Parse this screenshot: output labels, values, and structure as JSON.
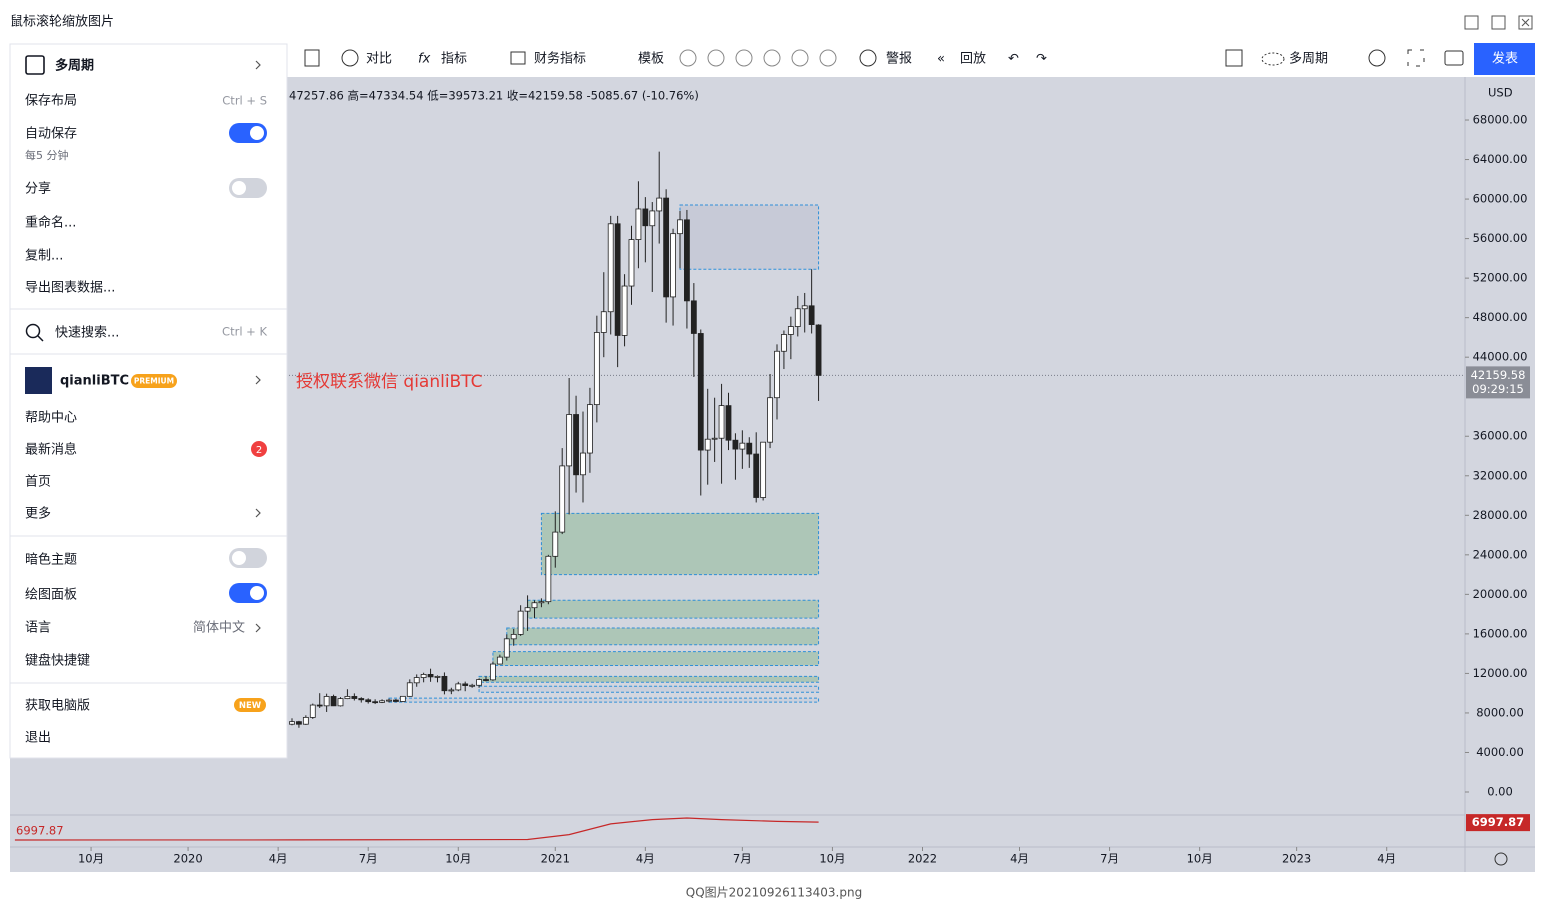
{
  "window": {
    "title": "鼠标滚轮缩放图片",
    "footer": "QQ图片20210926113403.png"
  },
  "toolbar": {
    "compare": "对比",
    "indicators": "指标",
    "financials": "财务指标",
    "templates": "模板",
    "alert": "警报",
    "replay": "回放",
    "layout": "多周期",
    "publish": "发表"
  },
  "menu": {
    "timeframe": "多周期",
    "save_layout": {
      "label": "保存布局",
      "shortcut": "Ctrl + S"
    },
    "autosave": {
      "label": "自动保存",
      "note": "每5 分钟",
      "on": true
    },
    "share": {
      "label": "分享",
      "on": false
    },
    "rename": "重命名...",
    "copy": "复制...",
    "export": "导出图表数据...",
    "search": {
      "label": "快速搜索...",
      "shortcut": "Ctrl + K"
    },
    "user": {
      "name": "qianliBTC",
      "plan": "PREMIUM"
    },
    "help": "帮助中心",
    "news": {
      "label": "最新消息",
      "count": 2
    },
    "home": "首页",
    "more": "更多",
    "dark": {
      "label": "暗色主题",
      "on": false
    },
    "drawing": {
      "label": "绘图面板",
      "on": true
    },
    "language": {
      "label": "语言",
      "value": "简体中文"
    },
    "shortcuts": "键盘快捷键",
    "desktop": {
      "label": "获取电脑版",
      "badge": "NEW"
    },
    "logout": "退出"
  },
  "chart_data": {
    "type": "candlestick",
    "header": "47257.86 高=47334.54 低=39573.21 收=42159.58 -5085.67 (-10.76%)",
    "watermark": "授权联系微信 qianliBTC",
    "currency": "USD",
    "up_color": "#ffffff",
    "down_color": "#222222",
    "open": [
      6860,
      7120,
      6860,
      7550,
      8800,
      8720,
      9670,
      8720,
      9450,
      9670,
      9460,
      9330,
      9140,
      9070,
      9230,
      9300,
      9160,
      9680,
      11050,
      11580,
      11900,
      11650,
      11700,
      10250,
      10330,
      10940,
      10770,
      10800,
      11380,
      11350,
      12950,
      13650,
      15500,
      15950,
      18300,
      18650,
      19150,
      19260,
      23850,
      26300,
      33000,
      38200,
      32100,
      34300,
      39200,
      46500,
      48600,
      57500,
      46200,
      51200,
      55900,
      59000,
      57300,
      58800,
      60100,
      50100,
      56500,
      57900,
      49700,
      46400,
      34600,
      35700,
      35800,
      39100,
      35600,
      34700,
      35300,
      34200,
      29800,
      35400,
      39900,
      44600,
      46300,
      47100,
      48900,
      49200,
      47257.86
    ],
    "high": [
      7460,
      7200,
      7760,
      8950,
      10000,
      9950,
      9850,
      9600,
      10400,
      9980,
      9590,
      9480,
      9380,
      9380,
      9450,
      9420,
      9680,
      11400,
      11900,
      12070,
      12480,
      11800,
      12100,
      10550,
      11150,
      11170,
      10950,
      11500,
      11700,
      13200,
      13900,
      15950,
      16500,
      18900,
      19900,
      19400,
      19600,
      24000,
      28400,
      34800,
      41900,
      40100,
      38500,
      40900,
      48200,
      52600,
      58300,
      58300,
      52400,
      57300,
      61800,
      60200,
      59700,
      64800,
      61000,
      57000,
      58800,
      58900,
      51500,
      46800,
      40800,
      39900,
      41300,
      40400,
      36300,
      36600,
      35900,
      36400,
      35400,
      42300,
      45300,
      46700,
      48100,
      50200,
      50500,
      52900,
      47334.54
    ],
    "low": [
      6750,
      6500,
      6790,
      7400,
      8500,
      8100,
      8700,
      8650,
      9400,
      9260,
      9050,
      8950,
      8900,
      9000,
      9060,
      9080,
      9100,
      9650,
      10650,
      11100,
      11150,
      11100,
      9880,
      9900,
      10200,
      10200,
      10550,
      10550,
      11200,
      11250,
      12900,
      13300,
      14800,
      15800,
      16300,
      17600,
      18700,
      19000,
      22700,
      26100,
      28100,
      30300,
      29300,
      32300,
      37400,
      44000,
      46300,
      43000,
      45100,
      49300,
      53000,
      53600,
      50600,
      55500,
      47500,
      47200,
      53000,
      46900,
      42000,
      30000,
      31100,
      33400,
      31200,
      34600,
      31600,
      32700,
      32800,
      29300,
      29500,
      34800,
      37700,
      42800,
      43800,
      46100,
      46500,
      46400,
      39573.21
    ],
    "close": [
      7120,
      6860,
      7550,
      8800,
      8720,
      9670,
      8720,
      9450,
      9670,
      9460,
      9330,
      9140,
      9070,
      9230,
      9300,
      9160,
      9680,
      11050,
      11580,
      11900,
      11650,
      11700,
      10250,
      10330,
      10940,
      10770,
      10800,
      11380,
      11350,
      12950,
      13650,
      15500,
      15950,
      18300,
      18650,
      19150,
      19260,
      23850,
      26300,
      33000,
      38200,
      32100,
      34300,
      39200,
      46500,
      48600,
      57500,
      46200,
      51200,
      55900,
      59000,
      57300,
      58800,
      60100,
      50100,
      56500,
      57900,
      49700,
      46400,
      34600,
      35700,
      35800,
      39100,
      35600,
      34700,
      35300,
      34200,
      29800,
      35400,
      39900,
      44600,
      46300,
      47100,
      48900,
      49200,
      47300,
      42159.58
    ],
    "zones": [
      {
        "low": 52900,
        "high": 59400,
        "start": 56,
        "end": 76,
        "color": "#c5c9d6"
      },
      {
        "low": 22000,
        "high": 28200,
        "start": 36,
        "end": 76,
        "color": "#a9c4b3"
      },
      {
        "low": 17600,
        "high": 19400,
        "start": 34,
        "end": 76,
        "color": "#a9c4b3"
      },
      {
        "low": 14900,
        "high": 16600,
        "start": 31,
        "end": 76,
        "color": "#a9c4b3"
      },
      {
        "low": 12800,
        "high": 14200,
        "start": 29,
        "end": 76,
        "color": "#a9c4b3"
      },
      {
        "low": 11100,
        "high": 11700,
        "start": 27,
        "end": 76,
        "color": "#a9c4b3"
      },
      {
        "low": 10100,
        "high": 10700,
        "start": 27,
        "end": 76,
        "color": "#c9cfdb"
      },
      {
        "low": 9100,
        "high": 9500,
        "start": 14,
        "end": 76,
        "color": "#c9cfdb"
      }
    ],
    "last_price": {
      "value": 42159.58,
      "time": "09:29:15"
    },
    "xlim": [
      -40.7,
      169.3
    ],
    "xticks": [
      {
        "value": -29,
        "label": "10月"
      },
      {
        "value": -15,
        "label": "2020"
      },
      {
        "value": -2,
        "label": "4月"
      },
      {
        "value": 11,
        "label": "7月"
      },
      {
        "value": 24,
        "label": "10月"
      },
      {
        "value": 38,
        "label": "2021"
      },
      {
        "value": 51,
        "label": "4月"
      },
      {
        "value": 65,
        "label": "7月"
      },
      {
        "value": 78,
        "label": "10月"
      },
      {
        "value": 91,
        "label": "2022"
      },
      {
        "value": 105,
        "label": "4月"
      },
      {
        "value": 118,
        "label": "7月"
      },
      {
        "value": 131,
        "label": "10月"
      },
      {
        "value": 145,
        "label": "2023"
      },
      {
        "value": 158,
        "label": "4月"
      }
    ],
    "ylim": [
      -2327,
      72353
    ],
    "yticks": [
      {
        "value": 0,
        "label": "0.00"
      },
      {
        "value": 4000,
        "label": "4000.00"
      },
      {
        "value": 8000,
        "label": "8000.00"
      },
      {
        "value": 12000,
        "label": "12000.00"
      },
      {
        "value": 16000,
        "label": "16000.00"
      },
      {
        "value": 20000,
        "label": "20000.00"
      },
      {
        "value": 24000,
        "label": "24000.00"
      },
      {
        "value": 28000,
        "label": "28000.00"
      },
      {
        "value": 32000,
        "label": "32000.00"
      },
      {
        "value": 36000,
        "label": "36000.00"
      },
      {
        "value": 44000,
        "label": "44000.00"
      },
      {
        "value": 48000,
        "label": "48000.00"
      },
      {
        "value": 52000,
        "label": "52000.00"
      },
      {
        "value": 56000,
        "label": "56000.00"
      },
      {
        "value": 60000,
        "label": "60000.00"
      },
      {
        "value": 64000,
        "label": "64000.00"
      },
      {
        "value": 68000,
        "label": "68000.00"
      }
    ],
    "indicator": {
      "value": 6997.87,
      "color": "#c62828",
      "ylim": [
        0,
        9000
      ],
      "x": [
        -40,
        0,
        20,
        34,
        40,
        46,
        52,
        57,
        62,
        70,
        76
      ],
      "values": [
        1970,
        2000,
        2050,
        2100,
        3500,
        6500,
        7700,
        8150,
        7700,
        7200,
        6997.87
      ]
    }
  }
}
